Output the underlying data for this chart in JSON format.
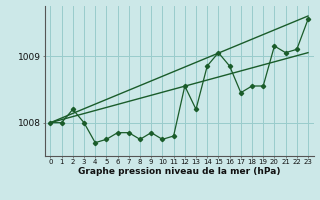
{
  "xlabel": "Graphe pression niveau de la mer (hPa)",
  "background_color": "#cce8e8",
  "grid_color": "#99cccc",
  "line_color": "#1a5c2a",
  "hours": [
    0,
    1,
    2,
    3,
    4,
    5,
    6,
    7,
    8,
    9,
    10,
    11,
    12,
    13,
    14,
    15,
    16,
    17,
    18,
    19,
    20,
    21,
    22,
    23
  ],
  "pressure": [
    1008.0,
    1008.0,
    1008.2,
    1008.0,
    1007.7,
    1007.75,
    1007.85,
    1007.85,
    1007.75,
    1007.85,
    1007.75,
    1007.8,
    1008.55,
    1008.2,
    1008.85,
    1009.05,
    1008.85,
    1008.45,
    1008.55,
    1008.55,
    1009.15,
    1009.05,
    1009.1,
    1009.55
  ],
  "upper_line": [
    [
      0,
      1008.0
    ],
    [
      23,
      1009.6
    ]
  ],
  "lower_line": [
    [
      0,
      1008.0
    ],
    [
      23,
      1009.05
    ]
  ],
  "ylim": [
    1007.5,
    1009.75
  ],
  "yticks": [
    1008,
    1009
  ],
  "xlim": [
    -0.5,
    23.5
  ],
  "xtick_labels": [
    "0",
    "1",
    "2",
    "3",
    "4",
    "5",
    "6",
    "7",
    "8",
    "9",
    "10",
    "11",
    "12",
    "13",
    "14",
    "15",
    "16",
    "17",
    "18",
    "19",
    "20",
    "21",
    "22",
    "23"
  ]
}
